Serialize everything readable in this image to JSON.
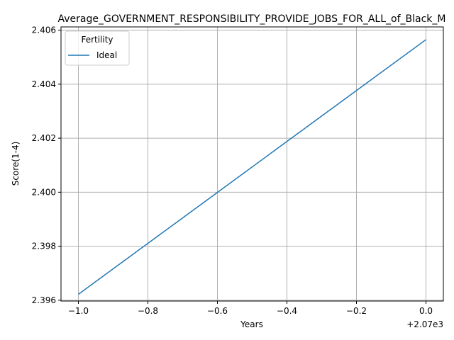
{
  "chart_data": {
    "type": "line",
    "title": "Average_GOVERNMENT_RESPONSIBILITY_PROVIDE_JOBS_FOR_ALL_of_Black_M",
    "xlabel": "Years",
    "ylabel": "Score(1-4)",
    "x_offset_label": "+2.07e3",
    "xlim": [
      -1.05,
      0.05
    ],
    "ylim": [
      2.39597,
      2.40612
    ],
    "x_ticks": [
      -1.0,
      -0.8,
      -0.6,
      -0.4,
      -0.2,
      0.0
    ],
    "x_tick_labels": [
      "−1.0",
      "−0.8",
      "−0.6",
      "−0.4",
      "−0.2",
      "0.0"
    ],
    "y_ticks": [
      2.396,
      2.398,
      2.4,
      2.402,
      2.404,
      2.406
    ],
    "y_tick_labels": [
      "2.396",
      "2.398",
      "2.400",
      "2.402",
      "2.404",
      "2.406"
    ],
    "grid": true,
    "legend": {
      "title": "Fertility",
      "placement": "top-left"
    },
    "series": [
      {
        "name": "Ideal",
        "color": "#1f77b4",
        "x": [
          -1.0,
          0.0
        ],
        "y": [
          2.39622,
          2.40565
        ]
      }
    ]
  }
}
